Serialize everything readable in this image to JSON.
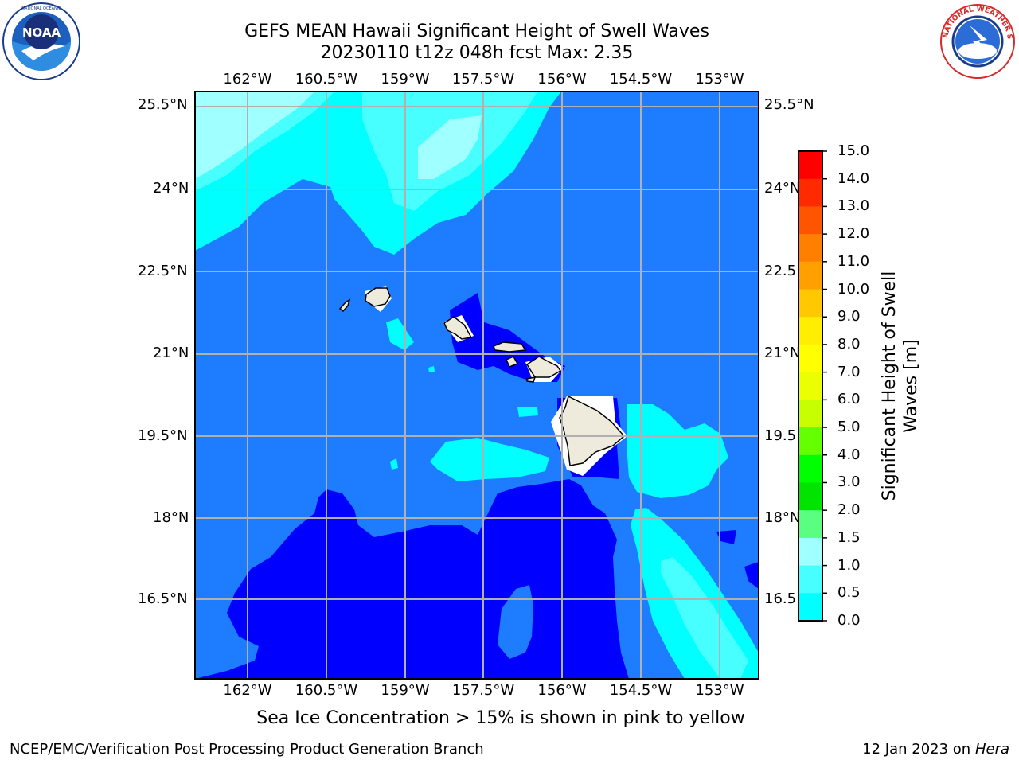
{
  "title_line1": "GEFS MEAN Hawaii Significant Height of Swell Waves",
  "title_line2": "20230110 t12z 048h fcst   Max: 2.35",
  "logos": {
    "left": {
      "name": "noaa-logo",
      "text": "NOAA",
      "ring_text": "NATIONAL OCEANIC AND ATMOSPHERIC ADMINISTRATION · U.S. DEPARTMENT OF COMMERCE"
    },
    "right": {
      "name": "nws-logo",
      "ring_text": "NATIONAL WEATHER SERVICE"
    }
  },
  "map": {
    "lon_ticks": [
      "162°W",
      "160.5°W",
      "159°W",
      "157.5°W",
      "156°W",
      "154.5°W",
      "153°W"
    ],
    "lat_ticks": [
      "25.5°N",
      "24°N",
      "22.5°N",
      "21°N",
      "19.5°N",
      "18°N",
      "16.5°N"
    ],
    "lat_ticks_right": [
      "25.5°N",
      "24°N",
      "22.5",
      "21°N",
      "19.5",
      "18°N",
      "16.5"
    ],
    "grid": true,
    "colors": {
      "ocean_0_0.5": "#0000ff",
      "swell_0.5_1.0": "#1e7cff",
      "swell_1.0_1.5": "#00ffff",
      "swell_1.5_2.0": "#48ffff",
      "swell_2.0_3.0": "#a0ffff",
      "land": "#efebdc",
      "grid": "#b0b0b0"
    }
  },
  "colorbar": {
    "label": "Significant Height of Swell Waves [m]",
    "label_line1": "Significant Height of Swell",
    "label_line2": "Waves [m]",
    "ticks": [
      "15.0",
      "14.0",
      "13.0",
      "12.0",
      "11.0",
      "10.0",
      "9.0",
      "8.0",
      "7.0",
      "6.0",
      "5.0",
      "4.0",
      "3.0",
      "2.0",
      "1.5",
      "1.0",
      "0.5",
      "0.0"
    ],
    "bands": [
      "#ff0000",
      "#ff2a00",
      "#ff5500",
      "#ff8000",
      "#ffa000",
      "#ffc800",
      "#ffee00",
      "#ffff00",
      "#ebff00",
      "#c8ff00",
      "#64ff00",
      "#00ff00",
      "#00e400",
      "#5aff82",
      "#a0ffff",
      "#48ffff",
      "#00ffff",
      "#1e7cff",
      "#0000ff"
    ]
  },
  "note": "Sea Ice Concentration > 15% is shown in pink to yellow",
  "footer_left": "NCEP/EMC/Verification Post Processing Product Generation Branch",
  "footer_right_prefix": "12 Jan 2023 on ",
  "footer_right_machine": "Hera"
}
